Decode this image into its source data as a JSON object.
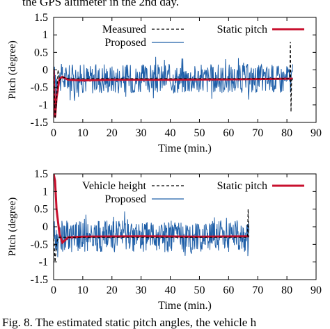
{
  "captions": {
    "top": "the GPS altimeter in the 2nd day.",
    "bottom": "Fig. 8.  The estimated static pitch angles, the vehicle h"
  },
  "chart_data": [
    {
      "type": "line",
      "title": "",
      "xlabel": "Time (min.)",
      "ylabel": "Pitch (degree)",
      "xlim": [
        0,
        90
      ],
      "ylim": [
        -1.5,
        1.5
      ],
      "xticks": [
        0,
        10,
        20,
        30,
        40,
        50,
        60,
        70,
        80,
        90
      ],
      "yticks": [
        -1.5,
        -1,
        -0.5,
        0,
        0.5,
        1,
        1.5
      ],
      "grid": false,
      "legend": [
        {
          "label": "Measured",
          "style": "dashed",
          "color": "#000000",
          "placement": "top-left"
        },
        {
          "label": "Proposed",
          "style": "solid",
          "color": "#1f5fa8",
          "placement": "top-left"
        },
        {
          "label": "Static pitch",
          "style": "solid-thick",
          "color": "#c8102e",
          "placement": "top-right"
        }
      ],
      "series": [
        {
          "name": "Measured",
          "x": [
            0,
            0.5,
            1,
            1.5,
            2,
            3,
            5,
            81,
            81.2,
            81.4,
            81.6,
            82
          ],
          "y": [
            0.1,
            -1.4,
            -0.9,
            0.0,
            -0.3,
            -0.2,
            -0.25,
            -0.25,
            0.8,
            -1.2,
            -0.3,
            -0.25
          ]
        },
        {
          "name": "Proposed",
          "x_start": 0,
          "x_end": 82,
          "center": -0.25,
          "amplitude": 0.42
        },
        {
          "name": "Static pitch",
          "x": [
            0,
            0.5,
            1,
            2,
            3,
            5,
            10,
            20,
            40,
            60,
            82
          ],
          "y": [
            0.0,
            -1.35,
            -0.8,
            -0.25,
            -0.2,
            -0.28,
            -0.3,
            -0.28,
            -0.28,
            -0.27,
            -0.25
          ]
        }
      ]
    },
    {
      "type": "line",
      "title": "",
      "xlabel": "Time (min.)",
      "ylabel": "Pitch (degree)",
      "xlim": [
        0,
        90
      ],
      "ylim": [
        -1.5,
        1.5
      ],
      "xticks": [
        0,
        10,
        20,
        30,
        40,
        50,
        60,
        70,
        80,
        90
      ],
      "yticks": [
        -1.5,
        -1,
        -0.5,
        0,
        0.5,
        1,
        1.5
      ],
      "grid": false,
      "legend": [
        {
          "label": "Vehicle height",
          "style": "dashed",
          "color": "#000000",
          "placement": "top-left"
        },
        {
          "label": "Proposed",
          "style": "solid",
          "color": "#1f5fa8",
          "placement": "top-left"
        },
        {
          "label": "Static pitch",
          "style": "solid-thick",
          "color": "#c8102e",
          "placement": "top-right"
        }
      ],
      "series": [
        {
          "name": "Vehicle height",
          "x": [
            0,
            0.5,
            1,
            1.5,
            2,
            5,
            66.5,
            66.7,
            66.9
          ],
          "y": [
            -0.2,
            -1.0,
            -0.5,
            -0.3,
            -0.3,
            -0.3,
            -0.3,
            0.5,
            -0.3
          ]
        },
        {
          "name": "Proposed",
          "x_start": 0,
          "x_end": 67,
          "center": -0.27,
          "amplitude": 0.45
        },
        {
          "name": "Static pitch",
          "x": [
            0,
            0.5,
            1,
            2,
            3,
            5,
            10,
            30,
            50,
            67
          ],
          "y": [
            1.5,
            1.3,
            0.5,
            -0.2,
            -0.45,
            -0.3,
            -0.28,
            -0.27,
            -0.28,
            -0.27
          ]
        }
      ]
    }
  ]
}
